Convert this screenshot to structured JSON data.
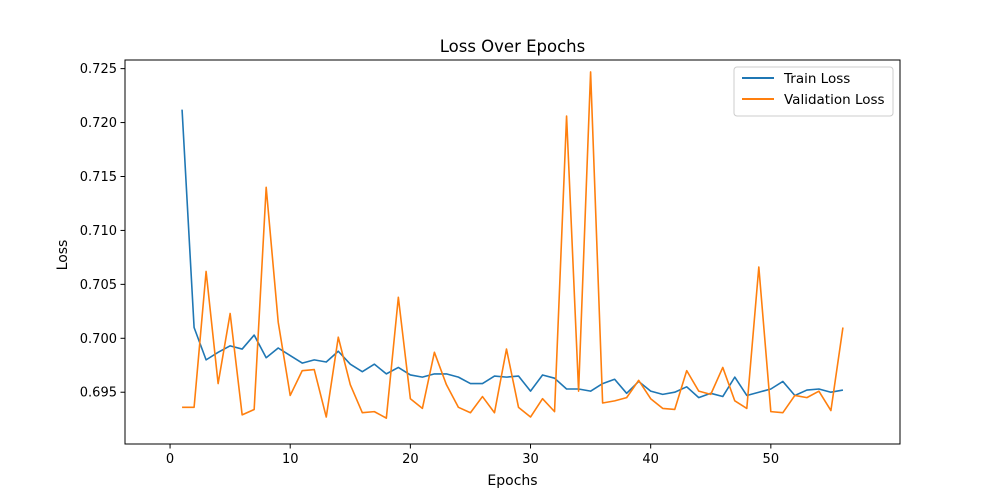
{
  "chart_data": {
    "type": "line",
    "title": "Loss Over Epochs",
    "xlabel": "Epochs",
    "ylabel": "Loss",
    "xlim": [
      -3.75,
      60.75
    ],
    "ylim": [
      0.6902,
      0.7258
    ],
    "xticks": [
      0,
      10,
      20,
      30,
      40,
      50
    ],
    "yticks": [
      0.695,
      0.7,
      0.705,
      0.71,
      0.715,
      0.72,
      0.725
    ],
    "ytick_labels": [
      "0.695",
      "0.700",
      "0.705",
      "0.710",
      "0.715",
      "0.720",
      "0.725"
    ],
    "grid": false,
    "legend_position": "top-right",
    "x": [
      1,
      2,
      3,
      4,
      5,
      6,
      7,
      8,
      9,
      10,
      11,
      12,
      13,
      14,
      15,
      16,
      17,
      18,
      19,
      20,
      21,
      22,
      23,
      24,
      25,
      26,
      27,
      28,
      29,
      30,
      31,
      32,
      33,
      34,
      35,
      36,
      37,
      38,
      39,
      40,
      41,
      42,
      43,
      44,
      45,
      46,
      47,
      48,
      49,
      50,
      51,
      52,
      53,
      54,
      55,
      56
    ],
    "series": [
      {
        "name": "Train Loss",
        "color": "#1f77b4",
        "values": [
          0.7212,
          0.701,
          0.698,
          0.6987,
          0.6993,
          0.699,
          0.7003,
          0.6982,
          0.6991,
          0.6984,
          0.6977,
          0.698,
          0.6978,
          0.6988,
          0.6976,
          0.6969,
          0.6976,
          0.6967,
          0.6973,
          0.6966,
          0.6964,
          0.6967,
          0.6967,
          0.6964,
          0.6958,
          0.6958,
          0.6965,
          0.6964,
          0.6965,
          0.6951,
          0.6966,
          0.6963,
          0.6953,
          0.6953,
          0.6951,
          0.6958,
          0.6962,
          0.6949,
          0.696,
          0.6951,
          0.6948,
          0.695,
          0.6955,
          0.6945,
          0.6949,
          0.6946,
          0.6964,
          0.6947,
          0.695,
          0.6953,
          0.696,
          0.6947,
          0.6952,
          0.6953,
          0.695,
          0.6952
        ]
      },
      {
        "name": "Validation Loss",
        "color": "#ff7f0e",
        "values": [
          0.6936,
          0.6936,
          0.7062,
          0.6958,
          0.7023,
          0.6929,
          0.6934,
          0.714,
          0.7015,
          0.6947,
          0.697,
          0.6971,
          0.6927,
          0.7001,
          0.6957,
          0.6931,
          0.6932,
          0.6926,
          0.7038,
          0.6944,
          0.6935,
          0.6987,
          0.6957,
          0.6936,
          0.6931,
          0.6946,
          0.6931,
          0.699,
          0.6936,
          0.6927,
          0.6944,
          0.6932,
          0.7206,
          0.6951,
          0.7247,
          0.694,
          0.6942,
          0.6945,
          0.6961,
          0.6944,
          0.6935,
          0.6934,
          0.697,
          0.6951,
          0.6948,
          0.6973,
          0.6942,
          0.6935,
          0.7066,
          0.6932,
          0.6931,
          0.6947,
          0.6945,
          0.6951,
          0.6933,
          0.701
        ]
      }
    ]
  }
}
